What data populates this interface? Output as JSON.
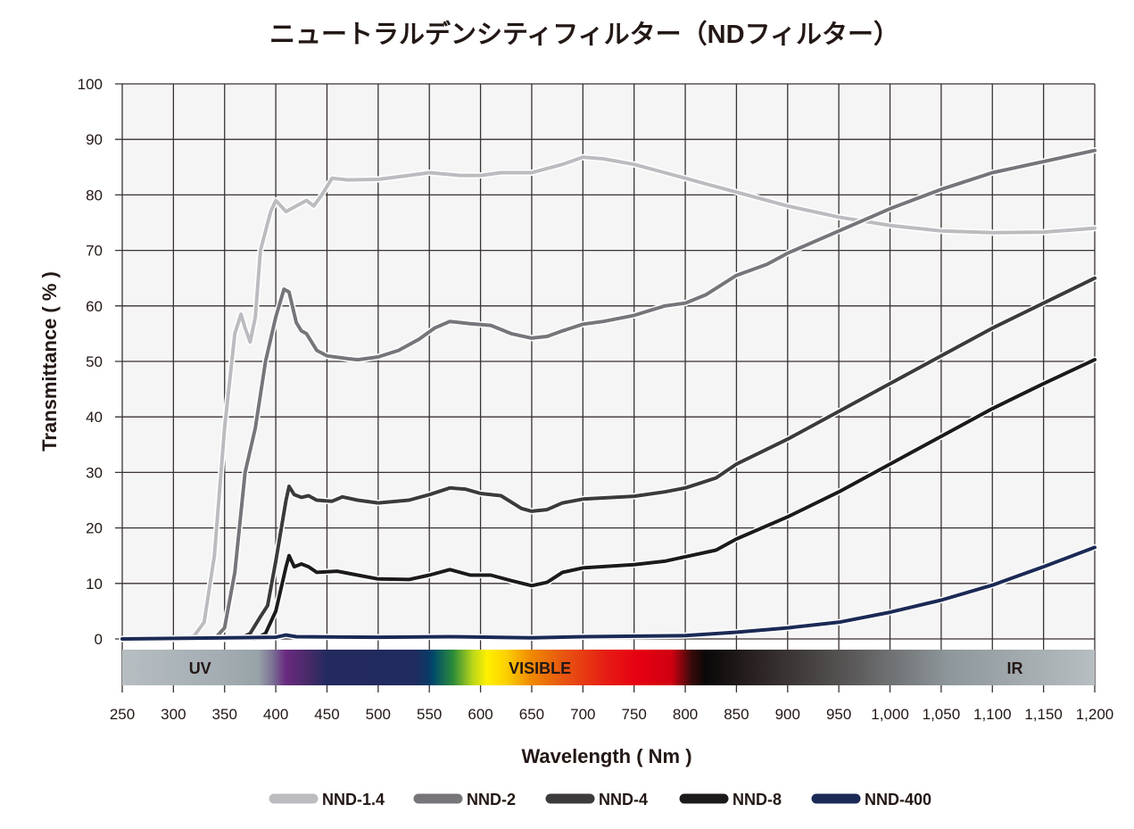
{
  "chart_data": {
    "type": "line",
    "title": "ニュートラルデンシティフィルター（NDフィルター）",
    "xlabel": "Wavelength ( Nm )",
    "ylabel": "Transmittance ( % )",
    "xlim": [
      250,
      1200
    ],
    "ylim": [
      0,
      100
    ],
    "grid": true,
    "legend_position": "bottom",
    "x_ticks": [
      250,
      300,
      350,
      400,
      450,
      500,
      550,
      600,
      650,
      700,
      750,
      800,
      850,
      900,
      950,
      1000,
      1050,
      1100,
      1150,
      1200
    ],
    "x_tick_labels": [
      "250",
      "300",
      "350",
      "400",
      "450",
      "500",
      "550",
      "600",
      "650",
      "700",
      "750",
      "800",
      "850",
      "900",
      "950",
      "1,000",
      "1,050",
      "1,100",
      "1,150",
      "1,200"
    ],
    "y_ticks": [
      0,
      10,
      20,
      30,
      40,
      50,
      60,
      70,
      80,
      90,
      100
    ],
    "y_tick_labels": [
      "0",
      "10",
      "20",
      "30",
      "40",
      "50",
      "60",
      "70",
      "80",
      "90",
      "100"
    ],
    "spectrum_labels": [
      {
        "text": "UV",
        "at_nm": 326
      },
      {
        "text": "VISIBLE",
        "at_nm": 658
      },
      {
        "text": "IR",
        "at_nm": 1122
      }
    ],
    "series": [
      {
        "name": "NND-1.4",
        "color": "#bcbbbf",
        "points": [
          [
            250,
            0
          ],
          [
            300,
            0
          ],
          [
            320,
            0.5
          ],
          [
            330,
            3
          ],
          [
            340,
            15
          ],
          [
            350,
            38
          ],
          [
            360,
            55
          ],
          [
            366,
            58.5
          ],
          [
            370,
            56
          ],
          [
            375,
            53.5
          ],
          [
            380,
            58
          ],
          [
            385,
            70
          ],
          [
            395,
            77
          ],
          [
            400,
            79
          ],
          [
            410,
            77
          ],
          [
            420,
            78
          ],
          [
            430,
            79
          ],
          [
            437,
            78
          ],
          [
            445,
            80
          ],
          [
            455,
            83
          ],
          [
            470,
            82.7
          ],
          [
            500,
            82.8
          ],
          [
            530,
            83.5
          ],
          [
            550,
            84
          ],
          [
            580,
            83.5
          ],
          [
            600,
            83.5
          ],
          [
            620,
            84
          ],
          [
            650,
            84
          ],
          [
            680,
            85.5
          ],
          [
            700,
            86.8
          ],
          [
            720,
            86.5
          ],
          [
            750,
            85.5
          ],
          [
            780,
            84
          ],
          [
            800,
            83
          ],
          [
            820,
            82
          ],
          [
            850,
            80.5
          ],
          [
            900,
            78
          ],
          [
            950,
            76
          ],
          [
            1000,
            74.5
          ],
          [
            1050,
            73.5
          ],
          [
            1100,
            73.2
          ],
          [
            1150,
            73.3
          ],
          [
            1200,
            74
          ]
        ]
      },
      {
        "name": "NND-2",
        "color": "#77757a",
        "points": [
          [
            250,
            0
          ],
          [
            340,
            0
          ],
          [
            350,
            2
          ],
          [
            360,
            12
          ],
          [
            370,
            30
          ],
          [
            380,
            38
          ],
          [
            390,
            50
          ],
          [
            400,
            58
          ],
          [
            408,
            63
          ],
          [
            413,
            62.5
          ],
          [
            420,
            57
          ],
          [
            425,
            55.5
          ],
          [
            430,
            55
          ],
          [
            440,
            52
          ],
          [
            450,
            51
          ],
          [
            470,
            50.5
          ],
          [
            480,
            50.3
          ],
          [
            500,
            50.8
          ],
          [
            520,
            52
          ],
          [
            540,
            54
          ],
          [
            555,
            56
          ],
          [
            570,
            57.2
          ],
          [
            590,
            56.8
          ],
          [
            610,
            56.5
          ],
          [
            630,
            55
          ],
          [
            650,
            54.2
          ],
          [
            665,
            54.5
          ],
          [
            680,
            55.5
          ],
          [
            700,
            56.7
          ],
          [
            720,
            57.2
          ],
          [
            750,
            58.3
          ],
          [
            780,
            60
          ],
          [
            800,
            60.5
          ],
          [
            820,
            62
          ],
          [
            850,
            65.5
          ],
          [
            880,
            67.5
          ],
          [
            900,
            69.5
          ],
          [
            950,
            73.5
          ],
          [
            1000,
            77.5
          ],
          [
            1050,
            81
          ],
          [
            1100,
            84
          ],
          [
            1150,
            86
          ],
          [
            1200,
            88
          ]
        ]
      },
      {
        "name": "NND-4",
        "color": "#3c3a3b",
        "points": [
          [
            250,
            0
          ],
          [
            365,
            0
          ],
          [
            375,
            1
          ],
          [
            385,
            4
          ],
          [
            392,
            6
          ],
          [
            400,
            14
          ],
          [
            410,
            25
          ],
          [
            413,
            27.5
          ],
          [
            418,
            26
          ],
          [
            425,
            25.5
          ],
          [
            432,
            25.8
          ],
          [
            440,
            25
          ],
          [
            455,
            24.8
          ],
          [
            465,
            25.6
          ],
          [
            480,
            25
          ],
          [
            500,
            24.5
          ],
          [
            530,
            25
          ],
          [
            550,
            26
          ],
          [
            570,
            27.2
          ],
          [
            585,
            27
          ],
          [
            600,
            26.2
          ],
          [
            620,
            25.8
          ],
          [
            640,
            23.5
          ],
          [
            650,
            23
          ],
          [
            665,
            23.3
          ],
          [
            680,
            24.5
          ],
          [
            700,
            25.2
          ],
          [
            750,
            25.7
          ],
          [
            780,
            26.5
          ],
          [
            800,
            27.2
          ],
          [
            830,
            29
          ],
          [
            850,
            31.5
          ],
          [
            900,
            36
          ],
          [
            950,
            41
          ],
          [
            1000,
            46
          ],
          [
            1050,
            51
          ],
          [
            1100,
            56
          ],
          [
            1150,
            60.5
          ],
          [
            1200,
            65
          ]
        ]
      },
      {
        "name": "NND-8",
        "color": "#1c1a1a",
        "points": [
          [
            250,
            0
          ],
          [
            380,
            0
          ],
          [
            390,
            1
          ],
          [
            400,
            5
          ],
          [
            410,
            13
          ],
          [
            413,
            15
          ],
          [
            418,
            13
          ],
          [
            425,
            13.5
          ],
          [
            432,
            13
          ],
          [
            440,
            12
          ],
          [
            460,
            12.2
          ],
          [
            480,
            11.5
          ],
          [
            500,
            10.8
          ],
          [
            530,
            10.7
          ],
          [
            550,
            11.5
          ],
          [
            570,
            12.5
          ],
          [
            590,
            11.5
          ],
          [
            610,
            11.5
          ],
          [
            630,
            10.5
          ],
          [
            650,
            9.6
          ],
          [
            665,
            10.2
          ],
          [
            680,
            12
          ],
          [
            700,
            12.8
          ],
          [
            750,
            13.4
          ],
          [
            780,
            14
          ],
          [
            800,
            14.8
          ],
          [
            830,
            16
          ],
          [
            850,
            18
          ],
          [
            900,
            22
          ],
          [
            950,
            26.5
          ],
          [
            1000,
            31.5
          ],
          [
            1050,
            36.5
          ],
          [
            1100,
            41.5
          ],
          [
            1150,
            46
          ],
          [
            1200,
            50.3
          ]
        ]
      },
      {
        "name": "NND-400",
        "color": "#1b2a55",
        "points": [
          [
            250,
            0
          ],
          [
            400,
            0.3
          ],
          [
            410,
            0.7
          ],
          [
            420,
            0.4
          ],
          [
            500,
            0.3
          ],
          [
            570,
            0.4
          ],
          [
            650,
            0.2
          ],
          [
            700,
            0.4
          ],
          [
            800,
            0.6
          ],
          [
            850,
            1.2
          ],
          [
            900,
            2
          ],
          [
            950,
            3
          ],
          [
            1000,
            4.8
          ],
          [
            1050,
            7
          ],
          [
            1100,
            9.7
          ],
          [
            1150,
            13
          ],
          [
            1200,
            16.5
          ]
        ]
      }
    ]
  }
}
